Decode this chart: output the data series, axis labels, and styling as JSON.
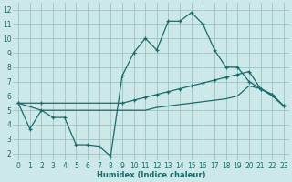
{
  "xlabel": "Humidex (Indice chaleur)",
  "bg_color": "#cce8e8",
  "grid_color": "#9ec4c4",
  "line_color": "#1a6b6b",
  "xlim": [
    -0.5,
    23.5
  ],
  "ylim": [
    1.5,
    12.5
  ],
  "xticks": [
    0,
    1,
    2,
    3,
    4,
    5,
    6,
    7,
    8,
    9,
    10,
    11,
    12,
    13,
    14,
    15,
    16,
    17,
    18,
    19,
    20,
    21,
    22,
    23
  ],
  "yticks": [
    2,
    3,
    4,
    5,
    6,
    7,
    8,
    9,
    10,
    11,
    12
  ],
  "line1_x": [
    0,
    1,
    2,
    3,
    4,
    5,
    6,
    7,
    8,
    9,
    10,
    11,
    12,
    13,
    14,
    15,
    16,
    17,
    18,
    19,
    20,
    21,
    22,
    23
  ],
  "line1_y": [
    5.5,
    3.7,
    5.0,
    4.5,
    4.5,
    2.6,
    2.6,
    2.5,
    1.8,
    7.4,
    9.0,
    10.0,
    9.2,
    11.2,
    11.2,
    11.8,
    11.0,
    9.2,
    8.0,
    8.0,
    7.0,
    6.5,
    6.1,
    5.3
  ],
  "line2_x": [
    0,
    2,
    9,
    10,
    11,
    12,
    13,
    14,
    15,
    16,
    17,
    18,
    19,
    20,
    21,
    22,
    23
  ],
  "line2_y": [
    5.5,
    5.5,
    5.5,
    5.7,
    5.9,
    6.1,
    6.3,
    6.5,
    6.7,
    6.9,
    7.1,
    7.3,
    7.5,
    7.7,
    6.5,
    6.1,
    5.3
  ],
  "line3_x": [
    0,
    2,
    9,
    10,
    11,
    12,
    13,
    14,
    15,
    16,
    17,
    18,
    19,
    20,
    21,
    22,
    23
  ],
  "line3_y": [
    5.5,
    5.0,
    5.0,
    5.0,
    5.0,
    5.2,
    5.3,
    5.4,
    5.5,
    5.6,
    5.7,
    5.8,
    6.0,
    6.7,
    6.5,
    6.0,
    5.3
  ]
}
